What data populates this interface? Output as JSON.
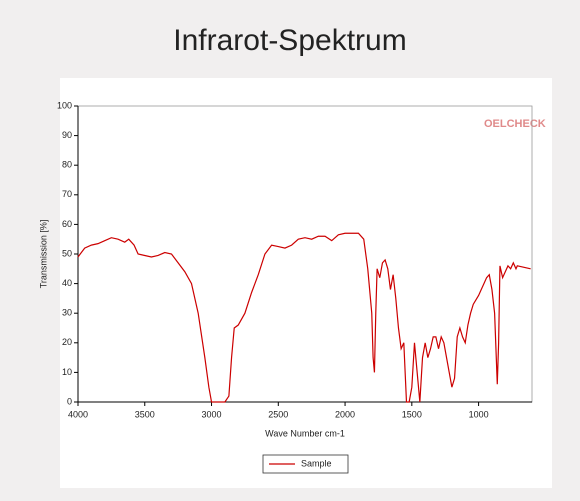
{
  "chart_data": {
    "type": "line",
    "title": "Infrarot-Spektrum",
    "watermark": "OELCHECK",
    "xlabel": "Wave Number cm-1",
    "ylabel": "Transmission [%]",
    "x": [
      4000,
      3950,
      3900,
      3850,
      3800,
      3750,
      3700,
      3650,
      3620,
      3580,
      3550,
      3500,
      3450,
      3400,
      3350,
      3300,
      3250,
      3200,
      3150,
      3100,
      3050,
      3020,
      3000,
      2960,
      2900,
      2870,
      2850,
      2830,
      2800,
      2750,
      2700,
      2650,
      2600,
      2550,
      2500,
      2450,
      2400,
      2350,
      2300,
      2250,
      2200,
      2150,
      2100,
      2050,
      2000,
      1950,
      1900,
      1860,
      1830,
      1800,
      1790,
      1780,
      1770,
      1760,
      1740,
      1720,
      1700,
      1680,
      1660,
      1640,
      1620,
      1600,
      1580,
      1560,
      1540,
      1520,
      1500,
      1480,
      1460,
      1440,
      1420,
      1400,
      1380,
      1360,
      1340,
      1320,
      1300,
      1280,
      1260,
      1240,
      1220,
      1200,
      1180,
      1160,
      1140,
      1120,
      1100,
      1080,
      1060,
      1040,
      1000,
      980,
      960,
      940,
      920,
      900,
      880,
      860,
      850,
      840,
      820,
      800,
      780,
      760,
      740,
      720,
      710,
      610
    ],
    "series": [
      {
        "name": "Sample",
        "color": "#cc0000",
        "values": [
          49,
          52,
          53,
          53.5,
          54.5,
          55.5,
          55,
          54,
          55,
          53,
          50,
          49.5,
          49,
          49.5,
          50.5,
          50,
          47,
          44,
          40,
          30,
          15,
          5,
          0,
          0,
          0,
          2,
          15,
          25,
          26,
          30,
          37,
          43,
          50,
          53,
          52.5,
          52,
          53,
          55,
          55.5,
          55,
          56,
          56,
          54.5,
          56.5,
          57,
          57,
          57,
          55,
          45,
          30,
          15,
          10,
          30,
          45,
          42,
          47,
          48,
          45,
          38,
          43,
          35,
          25,
          18,
          20,
          0,
          0,
          5,
          20,
          10,
          0,
          15,
          20,
          15,
          18,
          22,
          22,
          18,
          22,
          20,
          15,
          10,
          5,
          8,
          22,
          25,
          22,
          20,
          26,
          30,
          33,
          36,
          38,
          40,
          42,
          43,
          38,
          30,
          6,
          20,
          46,
          42,
          44,
          46,
          45,
          47,
          45,
          46,
          45
        ]
      }
    ],
    "xlim": [
      4000,
      600
    ],
    "xticks": [
      4000,
      3500,
      3000,
      2500,
      2000,
      1500,
      1000
    ],
    "ylim": [
      0,
      100
    ],
    "yticks": [
      0,
      10,
      20,
      30,
      40,
      50,
      60,
      70,
      80,
      90,
      100
    ],
    "legend": "bottom"
  }
}
